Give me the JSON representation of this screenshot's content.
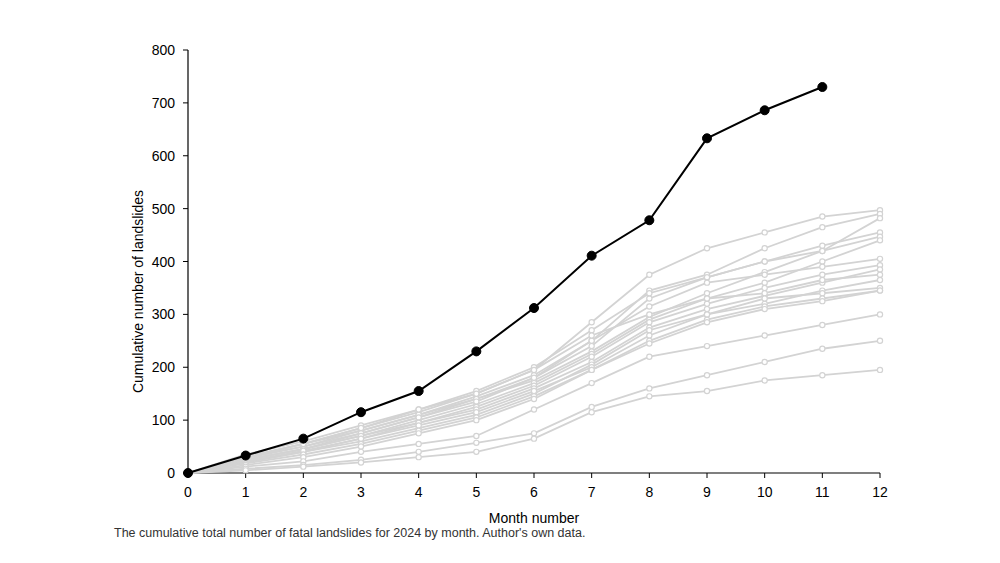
{
  "chart_data": {
    "type": "line",
    "x_label": "Month number",
    "y_label": "Cumulative number of landslides",
    "caption": "The cumulative total number of fatal landslides for 2024 by month. Author's own data.",
    "x": [
      0,
      1,
      2,
      3,
      4,
      5,
      6,
      7,
      8,
      9,
      10,
      11,
      12
    ],
    "xlim": [
      0,
      12
    ],
    "xticks": [
      0,
      1,
      2,
      3,
      4,
      5,
      6,
      7,
      8,
      9,
      10,
      11,
      12
    ],
    "ylim": [
      0,
      800
    ],
    "yticks": [
      0,
      100,
      200,
      300,
      400,
      500,
      600,
      700,
      800
    ],
    "grid": false,
    "series": [
      {
        "color": "#d3d3d3",
        "marker": "hollow-circle",
        "values": [
          0,
          30,
          55,
          85,
          115,
          150,
          195,
          285,
          375,
          425,
          455,
          485,
          497
        ]
      },
      {
        "color": "#d3d3d3",
        "marker": "hollow-circle",
        "values": [
          0,
          28,
          50,
          80,
          110,
          145,
          185,
          250,
          345,
          375,
          425,
          465,
          490
        ]
      },
      {
        "color": "#d3d3d3",
        "marker": "hollow-circle",
        "values": [
          0,
          25,
          45,
          75,
          105,
          140,
          180,
          240,
          330,
          370,
          400,
          420,
          482
        ]
      },
      {
        "color": "#d3d3d3",
        "marker": "hollow-circle",
        "values": [
          0,
          35,
          60,
          90,
          120,
          155,
          200,
          270,
          340,
          370,
          400,
          430,
          455
        ]
      },
      {
        "color": "#d3d3d3",
        "marker": "hollow-circle",
        "values": [
          0,
          30,
          55,
          80,
          110,
          140,
          175,
          230,
          295,
          340,
          380,
          420,
          447
        ]
      },
      {
        "color": "#d3d3d3",
        "marker": "hollow-circle",
        "values": [
          0,
          25,
          45,
          70,
          100,
          130,
          170,
          225,
          290,
          330,
          360,
          400,
          440
        ]
      },
      {
        "color": "#d3d3d3",
        "marker": "hollow-circle",
        "values": [
          0,
          30,
          50,
          75,
          105,
          135,
          180,
          250,
          315,
          360,
          375,
          390,
          405
        ]
      },
      {
        "color": "#d3d3d3",
        "marker": "hollow-circle",
        "values": [
          0,
          20,
          40,
          65,
          95,
          125,
          165,
          220,
          285,
          320,
          350,
          375,
          393
        ]
      },
      {
        "color": "#d3d3d3",
        "marker": "hollow-circle",
        "values": [
          0,
          25,
          45,
          70,
          95,
          120,
          160,
          210,
          275,
          310,
          335,
          360,
          385
        ]
      },
      {
        "color": "#d3d3d3",
        "marker": "hollow-circle",
        "values": [
          0,
          30,
          55,
          85,
          120,
          150,
          195,
          260,
          300,
          330,
          340,
          365,
          375
        ]
      },
      {
        "color": "#d3d3d3",
        "marker": "hollow-circle",
        "values": [
          0,
          20,
          40,
          60,
          85,
          110,
          150,
          205,
          270,
          300,
          320,
          345,
          365
        ]
      },
      {
        "color": "#d3d3d3",
        "marker": "hollow-circle",
        "values": [
          0,
          22,
          42,
          65,
          90,
          115,
          155,
          200,
          260,
          300,
          330,
          340,
          350
        ]
      },
      {
        "color": "#d3d3d3",
        "marker": "hollow-circle",
        "values": [
          0,
          18,
          35,
          55,
          80,
          105,
          145,
          195,
          250,
          290,
          315,
          330,
          345
        ]
      },
      {
        "color": "#d3d3d3",
        "marker": "hollow-circle",
        "values": [
          0,
          15,
          30,
          50,
          75,
          100,
          140,
          195,
          245,
          285,
          310,
          325,
          345
        ]
      },
      {
        "color": "#d3d3d3",
        "marker": "hollow-circle",
        "values": [
          0,
          12,
          22,
          40,
          55,
          70,
          120,
          170,
          220,
          240,
          260,
          280,
          300
        ]
      },
      {
        "color": "#d3d3d3",
        "marker": "hollow-circle",
        "values": [
          0,
          8,
          15,
          25,
          40,
          57,
          75,
          125,
          160,
          185,
          210,
          235,
          250
        ]
      },
      {
        "color": "#d3d3d3",
        "marker": "hollow-circle",
        "values": [
          0,
          5,
          12,
          20,
          30,
          40,
          65,
          115,
          145,
          155,
          175,
          185,
          195
        ]
      },
      {
        "color": "#000000",
        "marker": "circle",
        "values": [
          0,
          33,
          65,
          115,
          155,
          230,
          312,
          411,
          478,
          633,
          686,
          730,
          null
        ]
      }
    ]
  }
}
